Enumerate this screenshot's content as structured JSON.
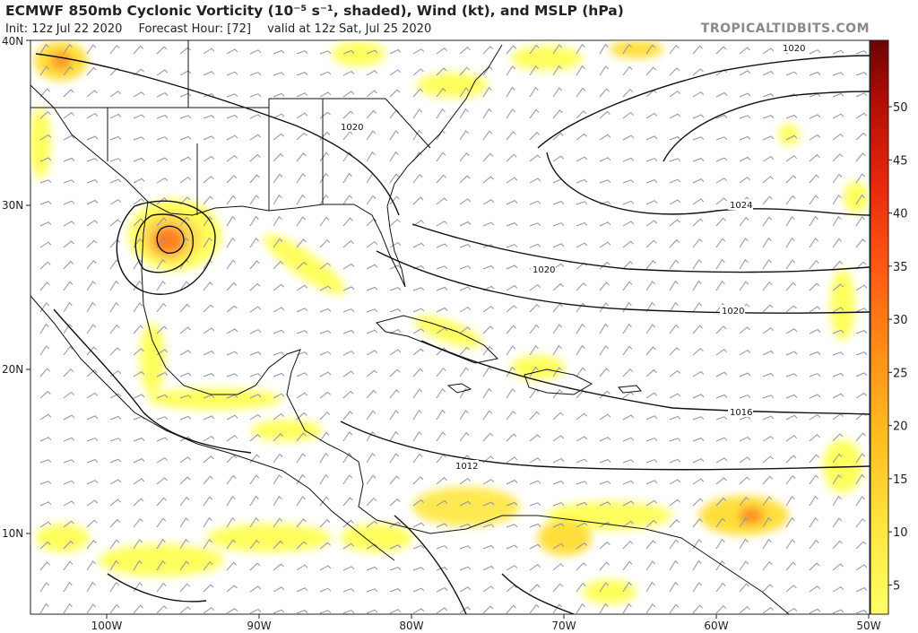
{
  "header": {
    "title": "ECMWF 850mb Cyclonic Vorticity (10⁻⁵ s⁻¹, shaded), Wind (kt), and MSLP (hPa)",
    "init": "Init: 12z Jul 22 2020",
    "forecast_hour": "Forecast Hour: [72]",
    "valid": "valid at 12z Sat, Jul 25 2020",
    "brand": "TROPICALTIDBITS.COM"
  },
  "axes": {
    "lat_labels": [
      "40N",
      "30N",
      "20N",
      "10N"
    ],
    "lon_labels": [
      "100W",
      "90W",
      "80W",
      "70W",
      "60W",
      "50W"
    ]
  },
  "colorbar": {
    "ticks": [
      "5",
      "10",
      "15",
      "20",
      "25",
      "30",
      "35",
      "40",
      "45",
      "50"
    ],
    "colors": [
      "#ffff66",
      "#ffe84a",
      "#ffd030",
      "#ffb020",
      "#ff8c1a",
      "#ff6a14",
      "#ff4a10",
      "#ee2a0c",
      "#cc1408",
      "#a00a06",
      "#700402"
    ]
  },
  "isobars": [
    "1020",
    "1020",
    "1024",
    "1020",
    "1020",
    "1016",
    "1012"
  ],
  "colors": {
    "coast": "#111111",
    "isobar": "#111111",
    "barb": "#8f8fb5",
    "shade_low": "#ffff55",
    "shade_mid": "#ffcc22",
    "shade_high": "#ff5500"
  }
}
